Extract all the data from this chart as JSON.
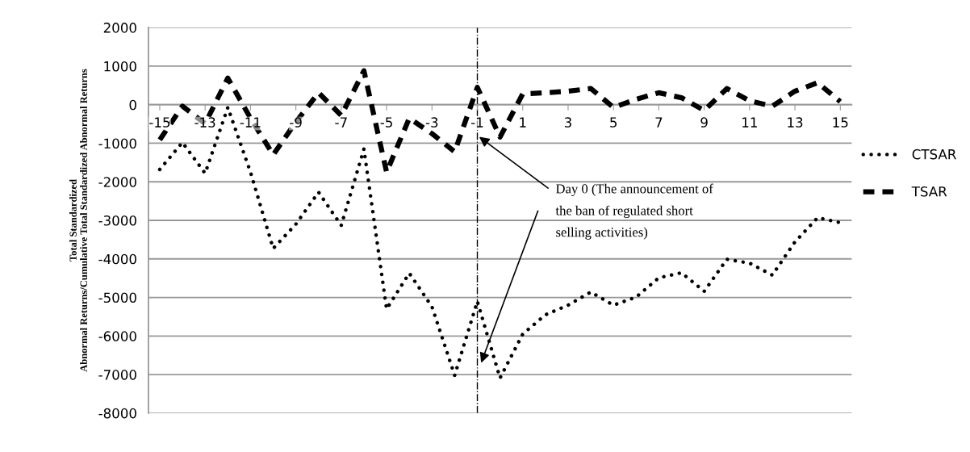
{
  "chart_data": {
    "type": "line",
    "ylabel": "Total Standardized\nAbnormal Returns/Cumulative Total Standardized Abnormal Returns",
    "x": [
      -15,
      -14,
      -13,
      -12,
      -11,
      -10,
      -9,
      -8,
      -7,
      -6,
      -5,
      -4,
      -3,
      -2,
      -1,
      0,
      1,
      2,
      3,
      4,
      5,
      6,
      7,
      8,
      9,
      10,
      11,
      12,
      13,
      14,
      15
    ],
    "xlim": [
      -15.5,
      15.5
    ],
    "xticks": [
      -15,
      -13,
      -11,
      -9,
      -7,
      -5,
      -3,
      -1,
      1,
      3,
      5,
      7,
      9,
      11,
      13,
      15
    ],
    "ylim": [
      -8000,
      2000
    ],
    "yticks": [
      -8000,
      -7000,
      -6000,
      -5000,
      -4000,
      -3000,
      -2000,
      -1000,
      0,
      1000,
      2000
    ],
    "grid": "y",
    "legend": "right",
    "series": [
      {
        "name": "CTSAR",
        "color": "#000000",
        "line_style": "dotted",
        "values": [
          -1680,
          -980,
          -1780,
          -70,
          -1750,
          -3730,
          -3100,
          -2270,
          -3130,
          -1150,
          -5300,
          -4370,
          -5240,
          -7020,
          -5100,
          -7090,
          -5950,
          -5450,
          -5200,
          -4860,
          -5200,
          -4990,
          -4490,
          -4360,
          -4840,
          -4010,
          -4110,
          -4420,
          -3560,
          -2930,
          -3060
        ]
      },
      {
        "name": "TSAR",
        "color": "#000000",
        "line_style": "dashed",
        "values": [
          -910,
          -40,
          -490,
          690,
          -350,
          -1300,
          -450,
          310,
          -280,
          880,
          -1750,
          -350,
          -750,
          -1220,
          450,
          -840,
          280,
          310,
          350,
          420,
          -70,
          140,
          310,
          180,
          -150,
          420,
          100,
          -40,
          350,
          570,
          80
        ]
      }
    ],
    "ref_lines": [
      {
        "axis": "x",
        "value": -1,
        "line_style": "dashdot",
        "color": "#000000"
      }
    ],
    "annotations": [
      {
        "text": "Day 0 (The announcement of\nthe ban of regulated short\nselling activities)",
        "x": -1,
        "y": -800
      }
    ]
  }
}
